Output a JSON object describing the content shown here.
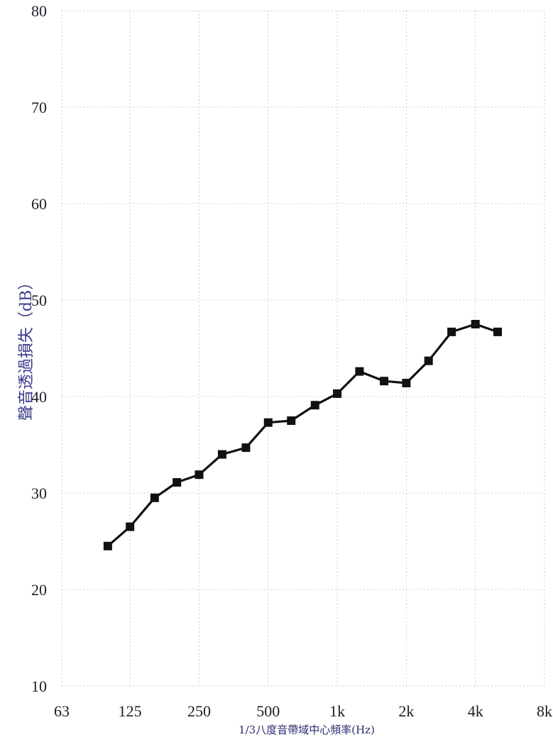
{
  "chart_data": {
    "type": "line",
    "title": "",
    "xlabel": "1/3八度音帶域中心頻率(Hz)",
    "ylabel": "聲音透過損失（dB）",
    "x_scale": "log",
    "xlim": [
      63,
      8000
    ],
    "ylim": [
      10,
      80
    ],
    "grid": true,
    "y_ticks": [
      {
        "value": 10,
        "label": "10"
      },
      {
        "value": 20,
        "label": "20"
      },
      {
        "value": 30,
        "label": "30"
      },
      {
        "value": 40,
        "label": "40"
      },
      {
        "value": 50,
        "label": "50"
      },
      {
        "value": 60,
        "label": "60"
      },
      {
        "value": 70,
        "label": "70"
      },
      {
        "value": 80,
        "label": "80"
      }
    ],
    "x_ticks": [
      {
        "value": 63,
        "label": "63"
      },
      {
        "value": 125,
        "label": "125"
      },
      {
        "value": 250,
        "label": "250"
      },
      {
        "value": 500,
        "label": "500"
      },
      {
        "value": 1000,
        "label": "1k"
      },
      {
        "value": 2000,
        "label": "2k"
      },
      {
        "value": 4000,
        "label": "4k"
      },
      {
        "value": 8000,
        "label": "8k"
      }
    ],
    "series": [
      {
        "x": [
          100,
          125,
          160,
          200,
          250,
          315,
          400,
          500,
          630,
          800,
          1000,
          1250,
          1600,
          2000,
          2500,
          3150,
          4000,
          5000
        ],
        "y": [
          24.5,
          26.5,
          29.5,
          31.1,
          31.9,
          34.0,
          34.7,
          37.3,
          37.5,
          39.1,
          40.3,
          42.6,
          41.6,
          41.4,
          43.7,
          46.7,
          47.5,
          46.7
        ],
        "marker": "square",
        "color": "#111111"
      }
    ]
  }
}
